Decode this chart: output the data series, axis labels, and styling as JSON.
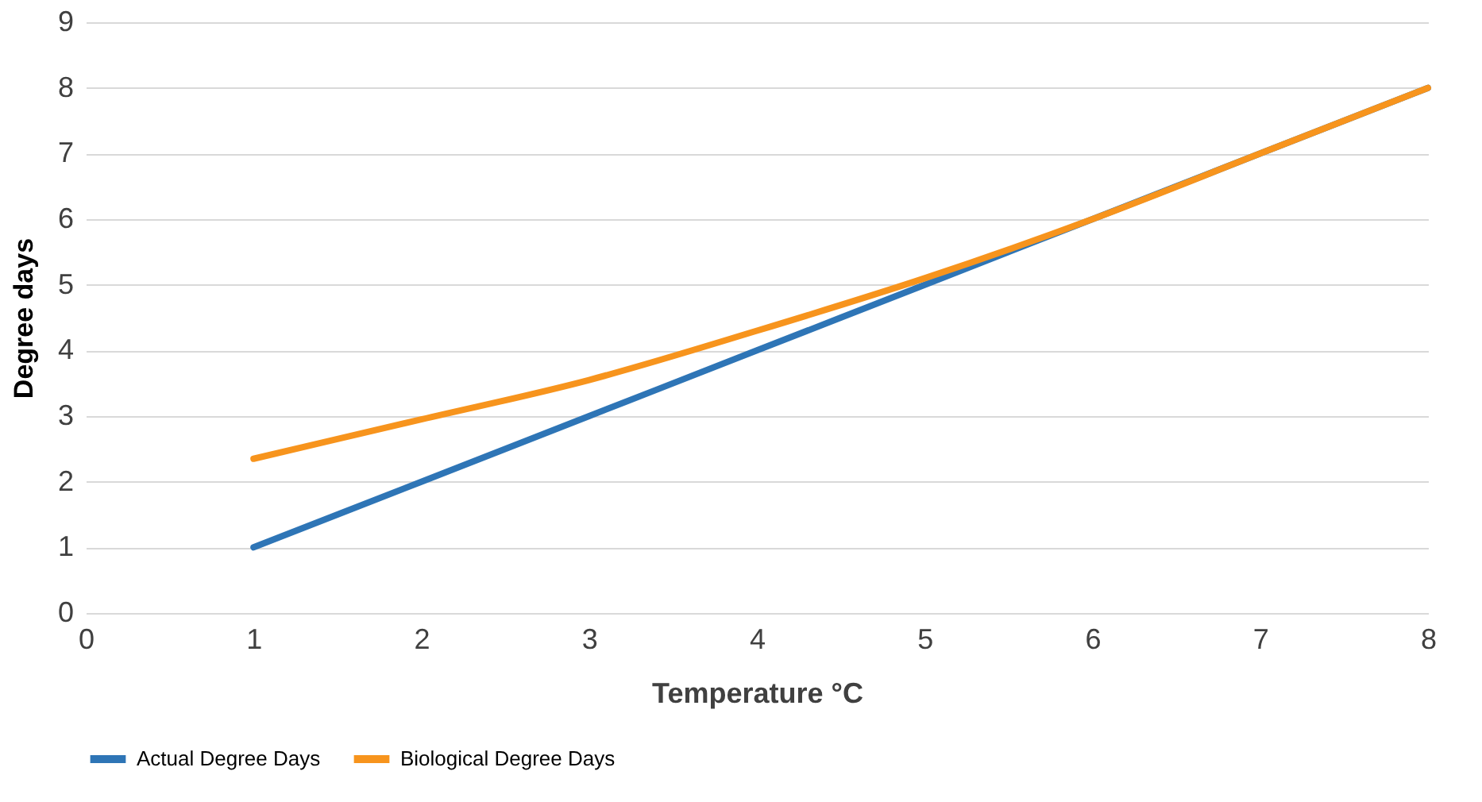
{
  "chart_data": {
    "type": "line",
    "xlabel": "Temperature °C",
    "ylabel": "Degree days",
    "x": [
      1,
      2,
      3,
      4,
      5,
      6,
      7,
      8
    ],
    "series": [
      {
        "name": "Actual Degree Days",
        "color": "#2e75b6",
        "values": [
          1,
          2,
          3,
          4,
          5,
          6,
          7,
          8
        ]
      },
      {
        "name": "Biological Degree Days",
        "color": "#f7941d",
        "values": [
          2.35,
          2.95,
          3.55,
          4.3,
          5.1,
          6,
          7,
          8
        ]
      }
    ],
    "xlim": [
      0,
      8
    ],
    "xticks": [
      0,
      1,
      2,
      3,
      4,
      5,
      6,
      7,
      8
    ],
    "ylim": [
      0,
      9
    ],
    "yticks": [
      0,
      1,
      2,
      3,
      4,
      5,
      6,
      7,
      8,
      9
    ],
    "grid": "y",
    "legend": "bottom",
    "marker": "none",
    "line_style": "solid"
  }
}
